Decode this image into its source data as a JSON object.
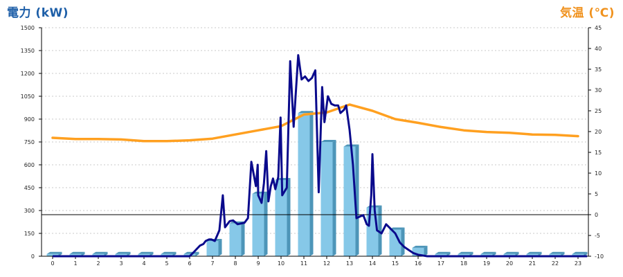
{
  "chart_data": {
    "type": "bar+line",
    "ylabel_left": "電力 (kW)",
    "ylabel_right": "気温 (℃)",
    "colors": {
      "ylabel_left": "#1e5fa8",
      "ylabel_right": "#f0921e",
      "bars": "#86c8e8",
      "bars_dark": "#4d95b8",
      "power_line": "#0a0a8c",
      "temp_line": "#ffa020"
    },
    "grid": true,
    "x_hours": [
      "0",
      "1",
      "2",
      "3",
      "4",
      "5",
      "6",
      "7",
      "8",
      "9",
      "10",
      "11",
      "12",
      "13",
      "14",
      "15",
      "16",
      "17",
      "18",
      "19",
      "20",
      "21",
      "22",
      "23"
    ],
    "y_left": {
      "min": 0,
      "max": 1500,
      "ticks": [
        "0",
        "150",
        "300",
        "450",
        "600",
        "750",
        "900",
        "1050",
        "1200",
        "1350",
        "1500"
      ]
    },
    "y_right": {
      "min": -10,
      "max": 45,
      "ticks": [
        "-10",
        "-5",
        "0",
        "5",
        "10",
        "15",
        "20",
        "25",
        "30",
        "35",
        "40",
        "45"
      ]
    },
    "bar_values": [
      15,
      15,
      15,
      15,
      15,
      15,
      15,
      100,
      215,
      410,
      500,
      940,
      750,
      720,
      320,
      175,
      55,
      15,
      15,
      15,
      15,
      15,
      15,
      15
    ],
    "power_line": [
      {
        "x": 0,
        "y": 0
      },
      {
        "x": 6,
        "y": 0
      },
      {
        "x": 6.2,
        "y": 30
      },
      {
        "x": 6.45,
        "y": 70
      },
      {
        "x": 6.6,
        "y": 80
      },
      {
        "x": 6.7,
        "y": 100
      },
      {
        "x": 6.85,
        "y": 110
      },
      {
        "x": 6.95,
        "y": 110
      },
      {
        "x": 7.1,
        "y": 100
      },
      {
        "x": 7.3,
        "y": 170
      },
      {
        "x": 7.45,
        "y": 400
      },
      {
        "x": 7.55,
        "y": 190
      },
      {
        "x": 7.75,
        "y": 230
      },
      {
        "x": 7.9,
        "y": 235
      },
      {
        "x": 8.1,
        "y": 210
      },
      {
        "x": 8.4,
        "y": 220
      },
      {
        "x": 8.55,
        "y": 250
      },
      {
        "x": 8.7,
        "y": 620
      },
      {
        "x": 8.9,
        "y": 460
      },
      {
        "x": 8.98,
        "y": 600
      },
      {
        "x": 9.0,
        "y": 400
      },
      {
        "x": 9.15,
        "y": 350
      },
      {
        "x": 9.25,
        "y": 480
      },
      {
        "x": 9.35,
        "y": 690
      },
      {
        "x": 9.45,
        "y": 360
      },
      {
        "x": 9.55,
        "y": 460
      },
      {
        "x": 9.65,
        "y": 510
      },
      {
        "x": 9.75,
        "y": 440
      },
      {
        "x": 9.88,
        "y": 520
      },
      {
        "x": 9.98,
        "y": 910
      },
      {
        "x": 10.05,
        "y": 400
      },
      {
        "x": 10.25,
        "y": 450
      },
      {
        "x": 10.4,
        "y": 1280
      },
      {
        "x": 10.55,
        "y": 850
      },
      {
        "x": 10.75,
        "y": 1320
      },
      {
        "x": 10.9,
        "y": 1160
      },
      {
        "x": 11.05,
        "y": 1180
      },
      {
        "x": 11.2,
        "y": 1150
      },
      {
        "x": 11.35,
        "y": 1170
      },
      {
        "x": 11.5,
        "y": 1220
      },
      {
        "x": 11.65,
        "y": 420
      },
      {
        "x": 11.8,
        "y": 1110
      },
      {
        "x": 11.9,
        "y": 880
      },
      {
        "x": 12.05,
        "y": 1050
      },
      {
        "x": 12.2,
        "y": 1000
      },
      {
        "x": 12.35,
        "y": 990
      },
      {
        "x": 12.5,
        "y": 990
      },
      {
        "x": 12.6,
        "y": 940
      },
      {
        "x": 12.75,
        "y": 960
      },
      {
        "x": 12.85,
        "y": 990
      },
      {
        "x": 13.0,
        "y": 830
      },
      {
        "x": 13.15,
        "y": 600
      },
      {
        "x": 13.3,
        "y": 250
      },
      {
        "x": 13.45,
        "y": 260
      },
      {
        "x": 13.6,
        "y": 270
      },
      {
        "x": 13.75,
        "y": 210
      },
      {
        "x": 13.85,
        "y": 200
      },
      {
        "x": 13.95,
        "y": 400
      },
      {
        "x": 14.0,
        "y": 670
      },
      {
        "x": 14.1,
        "y": 300
      },
      {
        "x": 14.2,
        "y": 170
      },
      {
        "x": 14.4,
        "y": 150
      },
      {
        "x": 14.6,
        "y": 210
      },
      {
        "x": 14.8,
        "y": 180
      },
      {
        "x": 15.0,
        "y": 150
      },
      {
        "x": 15.2,
        "y": 90
      },
      {
        "x": 15.4,
        "y": 60
      },
      {
        "x": 15.6,
        "y": 40
      },
      {
        "x": 15.8,
        "y": 20
      },
      {
        "x": 16.0,
        "y": 10
      },
      {
        "x": 16.4,
        "y": 0
      },
      {
        "x": 23.4,
        "y": 0
      }
    ],
    "temperature_line": [
      {
        "x": 0,
        "y": 18.5
      },
      {
        "x": 1,
        "y": 18.2
      },
      {
        "x": 2,
        "y": 18.2
      },
      {
        "x": 3,
        "y": 18.1
      },
      {
        "x": 4,
        "y": 17.7
      },
      {
        "x": 5,
        "y": 17.7
      },
      {
        "x": 6,
        "y": 17.9
      },
      {
        "x": 7,
        "y": 18.3
      },
      {
        "x": 8,
        "y": 19.3
      },
      {
        "x": 9,
        "y": 20.3
      },
      {
        "x": 10,
        "y": 21.3
      },
      {
        "x": 11,
        "y": 24.1
      },
      {
        "x": 12,
        "y": 24.6
      },
      {
        "x": 13,
        "y": 26.5
      },
      {
        "x": 14,
        "y": 25.0
      },
      {
        "x": 15,
        "y": 23.0
      },
      {
        "x": 16,
        "y": 22.1
      },
      {
        "x": 17,
        "y": 21.1
      },
      {
        "x": 18,
        "y": 20.3
      },
      {
        "x": 19,
        "y": 19.9
      },
      {
        "x": 20,
        "y": 19.7
      },
      {
        "x": 21,
        "y": 19.3
      },
      {
        "x": 22,
        "y": 19.2
      },
      {
        "x": 23,
        "y": 18.9
      }
    ]
  }
}
